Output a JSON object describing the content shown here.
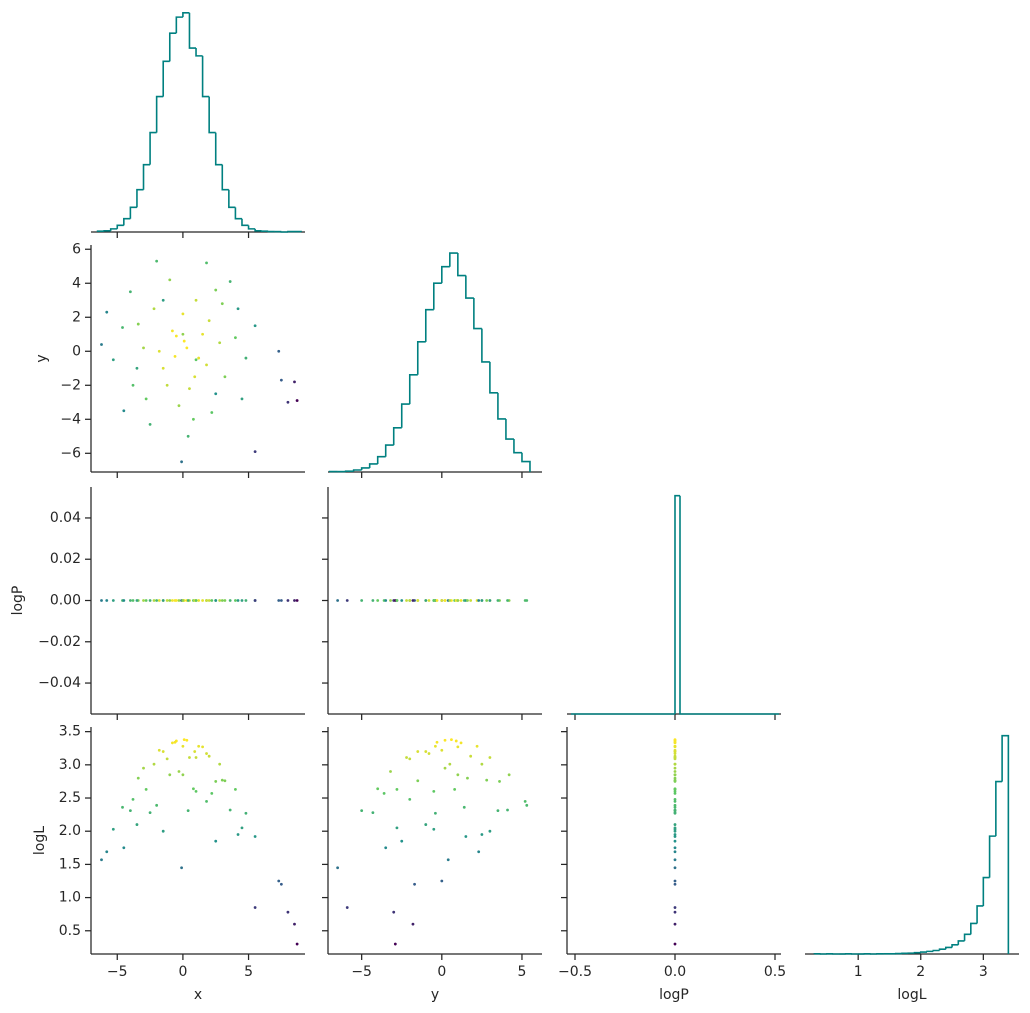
{
  "chart_data": {
    "type": "corner",
    "colormap": "viridis",
    "clim": [
      0.3,
      3.38
    ],
    "hist_color": "#008080",
    "variables": [
      {
        "name": "x",
        "samples": [
          0.1,
          -0.8,
          1.2,
          -1.5,
          2.0,
          -2.2,
          0.5,
          1.0,
          -3.0,
          3.2,
          -0.3,
          2.5,
          -3.8,
          4.0,
          -1.0,
          0.8,
          -4.6,
          4.5,
          -2.5,
          1.8,
          -5.3,
          5.5,
          -6.2,
          7.5,
          8.0,
          8.7,
          5.5,
          8.5,
          -0.1,
          7.3,
          0.3,
          -0.5,
          1.5,
          -1.8,
          0.0,
          0.9,
          -2.8,
          3.0,
          -4.0,
          2.2,
          -1.2,
          1.8,
          -3.4,
          3.6,
          -5.8,
          4.8,
          -2.0,
          0.4,
          2.8,
          -0.6,
          -3.5,
          2.5,
          -1.5,
          1.0,
          4.2,
          -4.5,
          0.0
        ],
        "xlim": [
          -7.0,
          9.3
        ],
        "xticks": [
          {
            "value": -5,
            "label": "−5"
          },
          0,
          5
        ],
        "hist": {
          "bins": [
            -6.5,
            -6,
            -5.5,
            -5,
            -4.5,
            -4,
            -3.5,
            -3,
            -2.5,
            -2,
            -1.5,
            -1,
            -0.5,
            0,
            0.5,
            1,
            1.5,
            2,
            2.5,
            3,
            3.5,
            4,
            4.5,
            5,
            5.5,
            6,
            6.5,
            7,
            7.5,
            8,
            8.5,
            9
          ],
          "counts": [
            2,
            3,
            8,
            17,
            34,
            63,
            108,
            172,
            254,
            346,
            436,
            508,
            549,
            560,
            470,
            450,
            346,
            254,
            172,
            108,
            63,
            34,
            17,
            8,
            3,
            2,
            1,
            1,
            0,
            1,
            1
          ],
          "ylim": [
            0,
            580
          ]
        }
      },
      {
        "name": "y",
        "samples": [
          0.6,
          1.2,
          -0.4,
          -1.0,
          1.8,
          2.5,
          -2.2,
          3.0,
          0.2,
          -1.5,
          -3.2,
          3.6,
          -2.0,
          0.8,
          4.2,
          -4.0,
          1.4,
          -2.8,
          -4.3,
          5.2,
          -0.5,
          1.5,
          0.4,
          -1.7,
          -3.0,
          -2.9,
          -5.9,
          -1.8,
          -6.5,
          0.0,
          0.2,
          0.9,
          1.0,
          0.0,
          2.2,
          -1.5,
          -2.8,
          2.8,
          3.5,
          -3.6,
          -2.0,
          -0.8,
          1.6,
          4.1,
          2.3,
          -0.4,
          5.3,
          -5.0,
          0.5,
          -0.3,
          -1.0,
          -2.5,
          3.0,
          -0.5,
          2.5,
          -3.5,
          1.0
        ],
        "xlim": [
          -7.1,
          6.25
        ],
        "xticks": [
          {
            "value": -5,
            "label": "−5"
          },
          0,
          5
        ],
        "ylim": [
          -7.1,
          6.25
        ],
        "yticks": [
          {
            "value": -6,
            "label": "−6"
          },
          {
            "value": -4,
            "label": "−4"
          },
          {
            "value": -2,
            "label": "−2"
          },
          0,
          2,
          4,
          6
        ],
        "hist": {
          "bins": [
            -7,
            -6.5,
            -6,
            -5.5,
            -5,
            -4.5,
            -4,
            -3.5,
            -3,
            -2.5,
            -2,
            -1.5,
            -1,
            -0.5,
            0,
            0.5,
            1,
            1.5,
            2,
            2.5,
            3,
            3.5,
            4,
            4.5,
            5,
            5.5
          ],
          "counts": [
            1,
            1,
            2,
            5,
            10,
            20,
            38,
            67,
            110,
            169,
            242,
            324,
            404,
            470,
            511,
            545,
            489,
            433,
            357,
            274,
            197,
            132,
            82,
            48,
            26
          ],
          "ylim": [
            0,
            565
          ]
        }
      },
      {
        "name": "logP",
        "samples": [
          0,
          0,
          0,
          0,
          0,
          0,
          0,
          0,
          0,
          0,
          0,
          0,
          0,
          0,
          0,
          0,
          0,
          0,
          0,
          0,
          0,
          0,
          0,
          0,
          0,
          0,
          0,
          0,
          0,
          0,
          0,
          0,
          0,
          0,
          0,
          0,
          0,
          0,
          0,
          0,
          0,
          0,
          0,
          0,
          0,
          0,
          0,
          0,
          0,
          0,
          0,
          0,
          0,
          0,
          0,
          0,
          0
        ],
        "xlim": [
          -0.54,
          0.53
        ],
        "xticks": [
          {
            "value": -0.5,
            "label": "−0.5"
          },
          {
            "value": 0,
            "label": "0.0"
          },
          0.5
        ],
        "ylim": [
          -0.055,
          0.055
        ],
        "yticks": [
          {
            "value": -0.04,
            "label": "−0.04"
          },
          {
            "value": -0.02,
            "label": "−0.02"
          },
          {
            "value": 0,
            "label": "0.00"
          },
          0.02,
          0.04
        ],
        "hist": {
          "bins": [
            -0.52,
            0,
            0.025,
            0.52
          ],
          "counts": [
            0,
            5000,
            0
          ],
          "ylim": [
            0,
            5200
          ]
        }
      },
      {
        "name": "logL",
        "samples": [
          3.38,
          3.33,
          3.28,
          3.2,
          3.13,
          3.01,
          3.11,
          3.11,
          2.95,
          2.76,
          2.9,
          2.75,
          2.48,
          2.63,
          2.85,
          2.64,
          2.36,
          2.05,
          2.28,
          2.45,
          2.03,
          1.92,
          1.57,
          1.2,
          0.78,
          0.3,
          0.85,
          0.6,
          1.45,
          1.25,
          3.37,
          3.36,
          3.27,
          3.22,
          3.28,
          3.2,
          2.63,
          2.77,
          2.31,
          2.57,
          3.09,
          3.17,
          2.8,
          2.32,
          1.69,
          2.27,
          2.39,
          2.31,
          3.01,
          3.34,
          2.1,
          1.85,
          2.0,
          2.6,
          1.95,
          1.75,
          2.85
        ],
        "xlim": [
          0.15,
          3.57
        ],
        "xticks": [
          1,
          2,
          3
        ],
        "ylim": [
          0.15,
          3.57
        ],
        "yticks": [
          0.5,
          {
            "value": 1.0,
            "label": "1.0"
          },
          1.5,
          {
            "value": 2.0,
            "label": "2.0"
          },
          2.5,
          {
            "value": 3.0,
            "label": "3.0"
          },
          3.5
        ],
        "hist": {
          "bins": [
            0.3,
            0.4,
            0.5,
            0.6,
            0.7,
            0.8,
            0.9,
            1.0,
            1.1,
            1.2,
            1.3,
            1.4,
            1.5,
            1.6,
            1.7,
            1.8,
            1.9,
            2.0,
            2.1,
            2.2,
            2.3,
            2.4,
            2.5,
            2.6,
            2.7,
            2.8,
            2.9,
            3.0,
            3.1,
            3.2,
            3.3,
            3.4
          ],
          "counts": [
            1,
            0,
            1,
            0,
            0,
            1,
            0,
            0,
            1,
            0,
            1,
            1,
            1,
            2,
            3,
            4,
            6,
            9,
            12,
            16,
            22,
            30,
            42,
            60,
            90,
            140,
            220,
            350,
            540,
            790,
            1000
          ],
          "ylim": [
            0,
            1040
          ]
        }
      }
    ]
  }
}
